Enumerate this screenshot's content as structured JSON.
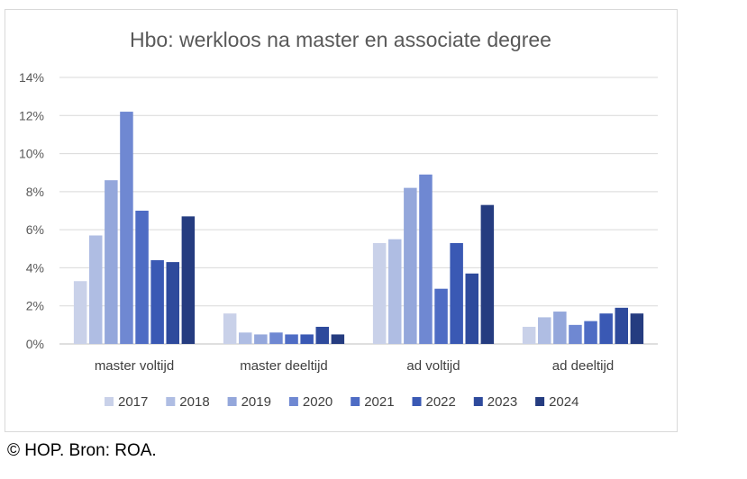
{
  "chart_data": {
    "type": "bar",
    "title": "Hbo: werkloos na master en associate degree",
    "xlabel": "",
    "ylabel": "",
    "ylim": [
      0,
      14
    ],
    "yticks": [
      "0%",
      "2%",
      "4%",
      "6%",
      "8%",
      "10%",
      "12%",
      "14%"
    ],
    "ytick_values": [
      0,
      2,
      4,
      6,
      8,
      10,
      12,
      14
    ],
    "grid": true,
    "legend_position": "bottom",
    "categories": [
      "master voltijd",
      "master deeltijd",
      "ad voltijd",
      "ad deeltijd"
    ],
    "series": [
      {
        "name": "2017",
        "color": "#c9d1e9",
        "values": [
          3.3,
          1.6,
          5.3,
          0.9
        ]
      },
      {
        "name": "2018",
        "color": "#afbde3",
        "values": [
          5.7,
          0.6,
          5.5,
          1.4
        ]
      },
      {
        "name": "2019",
        "color": "#94a7db",
        "values": [
          8.6,
          0.5,
          8.2,
          1.7
        ]
      },
      {
        "name": "2020",
        "color": "#6f88d2",
        "values": [
          12.2,
          0.6,
          8.9,
          1.0
        ]
      },
      {
        "name": "2021",
        "color": "#4e6cc4",
        "values": [
          7.0,
          0.5,
          2.9,
          1.2
        ]
      },
      {
        "name": "2022",
        "color": "#3a59b4",
        "values": [
          4.4,
          0.5,
          5.3,
          1.6
        ]
      },
      {
        "name": "2023",
        "color": "#2e4a9c",
        "values": [
          4.3,
          0.9,
          3.7,
          1.9
        ]
      },
      {
        "name": "2024",
        "color": "#253c80",
        "values": [
          6.7,
          0.5,
          7.3,
          1.6
        ]
      }
    ]
  },
  "credit": "© HOP. Bron: ROA."
}
